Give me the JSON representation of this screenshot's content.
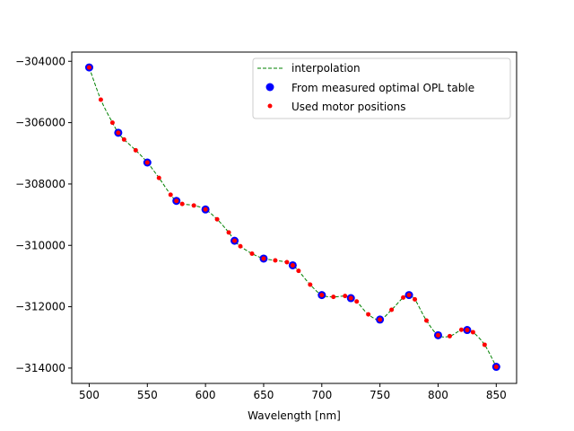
{
  "chart_data": {
    "type": "line",
    "title": "",
    "xlabel": "Wavelength [nm]",
    "ylabel": "",
    "xlim": [
      485,
      867.5
    ],
    "ylim": [
      -314500,
      -303700
    ],
    "xticks": [
      500,
      550,
      600,
      650,
      700,
      750,
      800,
      850
    ],
    "xtick_labels": [
      "500",
      "550",
      "600",
      "650",
      "700",
      "750",
      "800",
      "850"
    ],
    "yticks": [
      -314000,
      -312000,
      -310000,
      -308000,
      -306000,
      -304000
    ],
    "ytick_labels": [
      "−314000",
      "−312000",
      "−310000",
      "−308000",
      "−306000",
      "−304000"
    ],
    "grid": false,
    "legend_position": "top-right",
    "series": [
      {
        "name": "interpolation",
        "style": "dashed-line",
        "color": "#008000",
        "x": [
          500,
          510,
          520,
          525,
          530,
          540,
          550,
          560,
          570,
          575,
          580,
          590,
          600,
          610,
          620,
          625,
          630,
          640,
          650,
          660,
          670,
          675,
          680,
          690,
          700,
          710,
          720,
          725,
          730,
          740,
          750,
          760,
          770,
          775,
          780,
          790,
          800,
          810,
          820,
          825,
          830,
          840,
          850
        ],
        "y": [
          -304200,
          -305250,
          -306000,
          -306330,
          -306550,
          -306900,
          -307300,
          -307800,
          -308350,
          -308550,
          -308650,
          -308700,
          -308830,
          -309150,
          -309580,
          -309850,
          -310030,
          -310270,
          -310430,
          -310490,
          -310550,
          -310650,
          -310830,
          -311280,
          -311620,
          -311680,
          -311650,
          -311720,
          -311830,
          -312250,
          -312420,
          -312100,
          -311700,
          -311620,
          -311760,
          -312450,
          -312930,
          -312960,
          -312750,
          -312760,
          -312830,
          -313240,
          -313960
        ]
      },
      {
        "name": "From measured optimal OPL table",
        "style": "large-markers",
        "color": "#0000ff",
        "x": [
          500,
          525,
          550,
          575,
          600,
          625,
          650,
          675,
          700,
          725,
          750,
          775,
          800,
          825,
          850
        ],
        "y": [
          -304200,
          -306330,
          -307300,
          -308550,
          -308830,
          -309850,
          -310430,
          -310650,
          -311620,
          -311720,
          -312420,
          -311620,
          -312930,
          -312760,
          -313960
        ]
      },
      {
        "name": "Used motor positions",
        "style": "small-markers",
        "color": "#ff0000",
        "x": [
          500,
          510,
          520,
          525,
          530,
          540,
          550,
          560,
          570,
          575,
          580,
          590,
          600,
          610,
          620,
          625,
          630,
          640,
          650,
          660,
          670,
          675,
          680,
          690,
          700,
          710,
          720,
          725,
          730,
          740,
          750,
          760,
          770,
          775,
          780,
          790,
          800,
          810,
          820,
          825,
          830,
          840,
          850
        ],
        "y": [
          -304200,
          -305250,
          -306000,
          -306330,
          -306550,
          -306900,
          -307300,
          -307800,
          -308350,
          -308550,
          -308650,
          -308700,
          -308830,
          -309150,
          -309580,
          -309850,
          -310030,
          -310270,
          -310430,
          -310490,
          -310550,
          -310650,
          -310830,
          -311280,
          -311620,
          -311680,
          -311650,
          -311720,
          -311830,
          -312250,
          -312420,
          -312100,
          -311700,
          -311620,
          -311760,
          -312450,
          -312930,
          -312960,
          -312750,
          -312760,
          -312830,
          -313240,
          -313960
        ]
      }
    ]
  }
}
